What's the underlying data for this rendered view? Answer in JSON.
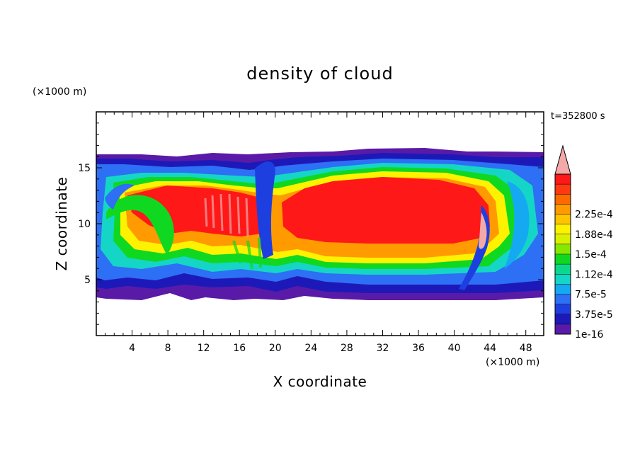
{
  "chart_data": {
    "type": "heatmap",
    "title": "density of cloud",
    "xlabel": "X coordinate",
    "ylabel": "Z coordinate",
    "x_unit": "(×1000 m)",
    "y_unit": "(×1000 m)",
    "time_label": "t=352800 s",
    "xlim": [
      0,
      50
    ],
    "ylim": [
      0,
      20
    ],
    "x_ticks": [
      4,
      8,
      12,
      16,
      20,
      24,
      28,
      32,
      36,
      40,
      44,
      48
    ],
    "y_ticks": [
      5,
      10,
      15
    ],
    "colorbar": {
      "labels": [
        "1e-16",
        "3.75e-5",
        "7.5e-5",
        "1.12e-4",
        "1.5e-4",
        "1.88e-4",
        "2.25e-4"
      ],
      "colors": [
        "#5a1aa8",
        "#1d19b8",
        "#1e3fe0",
        "#2d6ff5",
        "#15a9f2",
        "#15d6c6",
        "#0bd98a",
        "#10d820",
        "#86e800",
        "#d9f000",
        "#fff200",
        "#ffc400",
        "#ff9a00",
        "#ff6a00",
        "#ff3a10",
        "#ff1818"
      ],
      "extend_color": "#f4a9a9"
    }
  }
}
